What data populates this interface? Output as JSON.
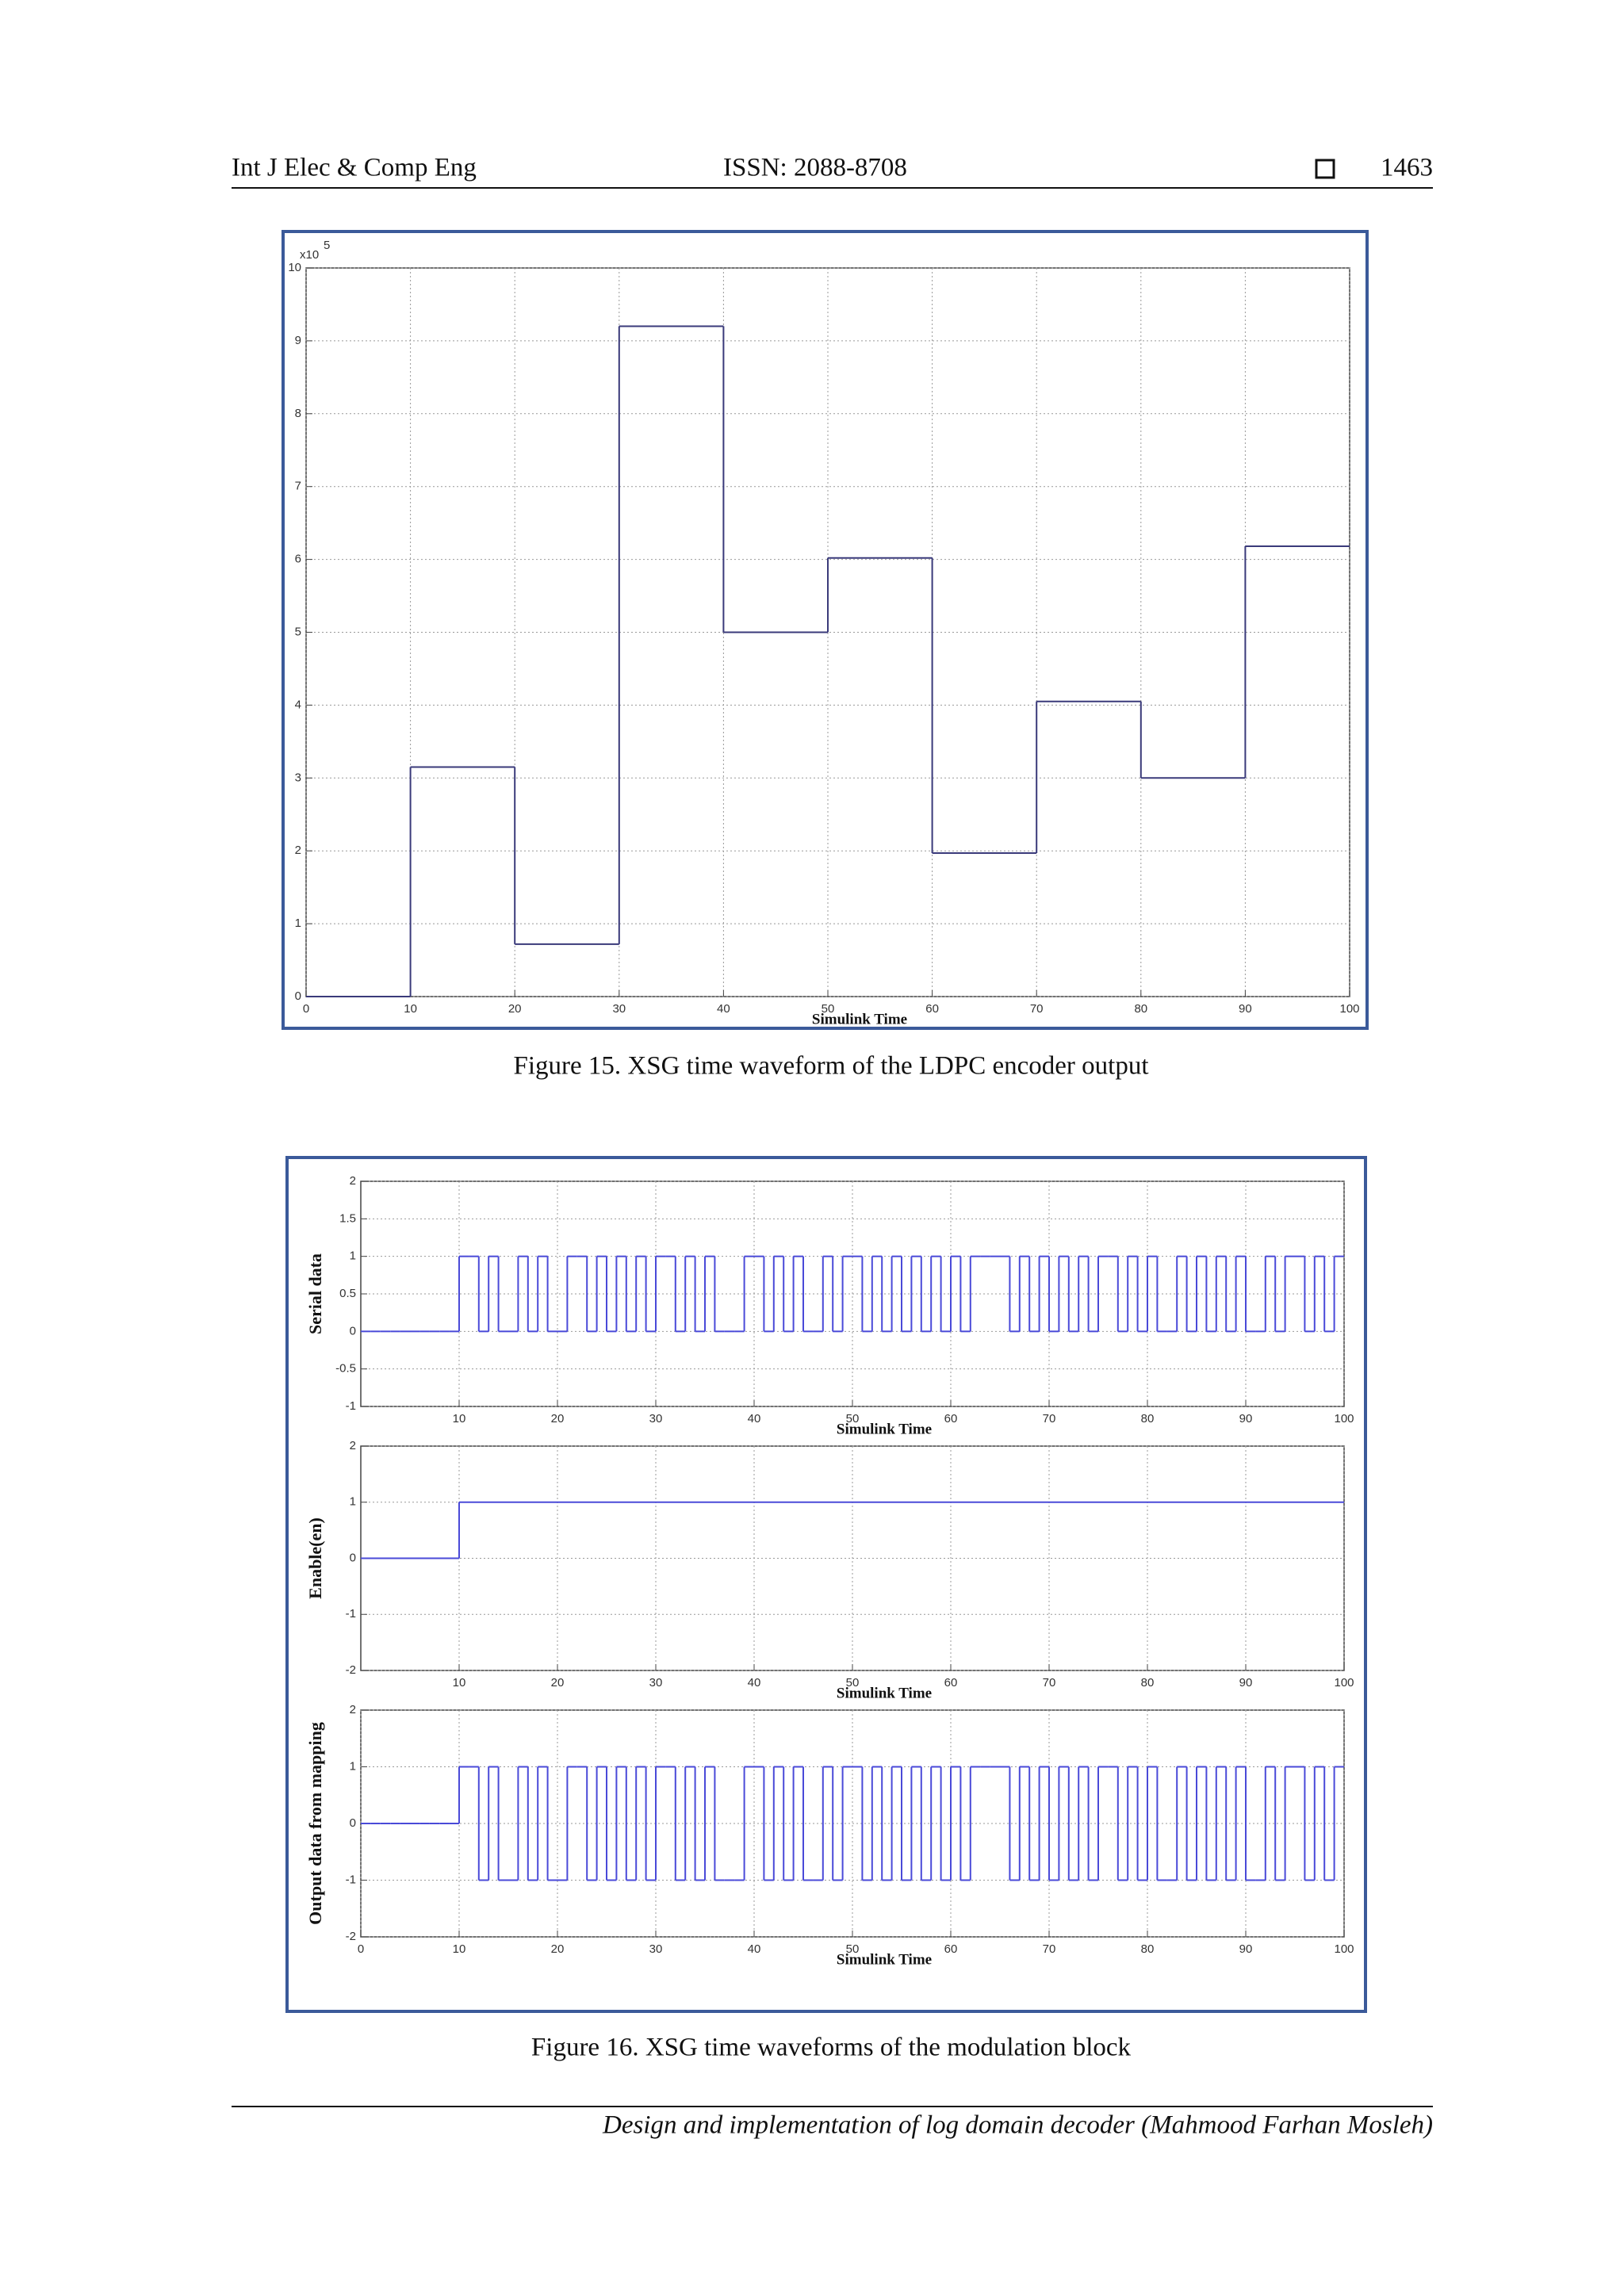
{
  "header": {
    "journal": "Int J Elec & Comp Eng",
    "issn": "ISSN: 2088-8708",
    "page": "1463"
  },
  "captions": [
    "Figure 15. XSG time waveform of the LDPC encoder output",
    "Figure 16. XSG time waveforms of the modulation block"
  ],
  "footer": "Design and implementation of log domain decoder (Mahmood Farhan Mosleh)",
  "chart_data": [
    {
      "type": "step",
      "xlabel": "Simulink Time",
      "y_scale": {
        "base": "x10",
        "exponent": "5"
      },
      "color": "#3a3a7a",
      "grid": true,
      "x": [
        0,
        10,
        20,
        30,
        40,
        50,
        60,
        70,
        80,
        90
      ],
      "values": [
        0,
        3.15,
        0.72,
        9.2,
        5.0,
        6.02,
        1.97,
        4.05,
        3.0,
        6.18
      ],
      "xlim": [
        0,
        100
      ],
      "ylim": [
        0,
        10
      ],
      "xticks": [
        0,
        10,
        20,
        30,
        40,
        50,
        60,
        70,
        80,
        90,
        100
      ],
      "yticks": [
        0,
        1,
        2,
        3,
        4,
        5,
        6,
        7,
        8,
        9,
        10
      ]
    },
    {
      "type": "step",
      "ylabel": "Serial data",
      "xlabel": "Simulink Time",
      "color": "#4a4ad8",
      "grid": true,
      "x": [
        0,
        1,
        2,
        3,
        4,
        5,
        6,
        7,
        8,
        9,
        10,
        11,
        12,
        13,
        14,
        15,
        16,
        17,
        18,
        19,
        20,
        21,
        22,
        23,
        24,
        25,
        26,
        27,
        28,
        29,
        30,
        31,
        32,
        33,
        34,
        35,
        36,
        37,
        38,
        39,
        40,
        41,
        42,
        43,
        44,
        45,
        46,
        47,
        48,
        49,
        50,
        51,
        52,
        53,
        54,
        55,
        56,
        57,
        58,
        59,
        60,
        61,
        62,
        63,
        64,
        65,
        66,
        67,
        68,
        69,
        70,
        71,
        72,
        73,
        74,
        75,
        76,
        77,
        78,
        79,
        80,
        81,
        82,
        83,
        84,
        85,
        86,
        87,
        88,
        89,
        90,
        91,
        92,
        93,
        94,
        95,
        96,
        97,
        98,
        99
      ],
      "values": [
        0,
        0,
        0,
        0,
        0,
        0,
        0,
        0,
        0,
        0,
        1,
        1,
        0,
        1,
        0,
        0,
        1,
        0,
        1,
        0,
        0,
        1,
        1,
        0,
        1,
        0,
        1,
        0,
        1,
        0,
        1,
        1,
        0,
        1,
        0,
        1,
        0,
        0,
        0,
        1,
        1,
        0,
        1,
        0,
        1,
        0,
        0,
        1,
        0,
        1,
        1,
        0,
        1,
        0,
        1,
        0,
        1,
        0,
        1,
        0,
        1,
        0,
        1,
        1,
        1,
        1,
        0,
        1,
        0,
        1,
        0,
        1,
        0,
        1,
        0,
        1,
        1,
        0,
        1,
        0,
        1,
        0,
        0,
        1,
        0,
        1,
        0,
        1,
        0,
        1,
        0,
        0,
        1,
        0,
        1,
        1,
        0,
        1,
        0,
        1
      ],
      "xlim": [
        0,
        100
      ],
      "ylim": [
        -1,
        2
      ],
      "xticks": [
        10,
        20,
        30,
        40,
        50,
        60,
        70,
        80,
        90,
        100
      ],
      "yticks": [
        -1,
        -0.5,
        0,
        0.5,
        1,
        1.5,
        2
      ]
    },
    {
      "type": "step",
      "ylabel": "Enable(en)",
      "xlabel": "Simulink Time",
      "color": "#4a4ad8",
      "grid": true,
      "x": [
        0,
        10
      ],
      "values": [
        0,
        1
      ],
      "xlim": [
        0,
        100
      ],
      "ylim": [
        -2,
        2
      ],
      "xticks": [
        10,
        20,
        30,
        40,
        50,
        60,
        70,
        80,
        90,
        100
      ],
      "yticks": [
        -2,
        -1,
        0,
        1,
        2
      ]
    },
    {
      "type": "step",
      "ylabel": "Output data from mapping",
      "xlabel": "Simulink Time",
      "color": "#4a4ad8",
      "grid": true,
      "x": [
        0,
        1,
        2,
        3,
        4,
        5,
        6,
        7,
        8,
        9,
        10,
        11,
        12,
        13,
        14,
        15,
        16,
        17,
        18,
        19,
        20,
        21,
        22,
        23,
        24,
        25,
        26,
        27,
        28,
        29,
        30,
        31,
        32,
        33,
        34,
        35,
        36,
        37,
        38,
        39,
        40,
        41,
        42,
        43,
        44,
        45,
        46,
        47,
        48,
        49,
        50,
        51,
        52,
        53,
        54,
        55,
        56,
        57,
        58,
        59,
        60,
        61,
        62,
        63,
        64,
        65,
        66,
        67,
        68,
        69,
        70,
        71,
        72,
        73,
        74,
        75,
        76,
        77,
        78,
        79,
        80,
        81,
        82,
        83,
        84,
        85,
        86,
        87,
        88,
        89,
        90,
        91,
        92,
        93,
        94,
        95,
        96,
        97,
        98,
        99
      ],
      "values": [
        0,
        0,
        0,
        0,
        0,
        0,
        0,
        0,
        0,
        0,
        1,
        1,
        -1,
        1,
        -1,
        -1,
        1,
        -1,
        1,
        -1,
        -1,
        1,
        1,
        -1,
        1,
        -1,
        1,
        -1,
        1,
        -1,
        1,
        1,
        -1,
        1,
        -1,
        1,
        -1,
        -1,
        -1,
        1,
        1,
        -1,
        1,
        -1,
        1,
        -1,
        -1,
        1,
        -1,
        1,
        1,
        -1,
        1,
        -1,
        1,
        -1,
        1,
        -1,
        1,
        -1,
        1,
        -1,
        1,
        1,
        1,
        1,
        -1,
        1,
        -1,
        1,
        -1,
        1,
        -1,
        1,
        -1,
        1,
        1,
        -1,
        1,
        -1,
        1,
        -1,
        -1,
        1,
        -1,
        1,
        -1,
        1,
        -1,
        1,
        -1,
        -1,
        1,
        -1,
        1,
        1,
        -1,
        1,
        -1,
        1
      ],
      "xlim": [
        0,
        100
      ],
      "ylim": [
        -2,
        2
      ],
      "xticks": [
        0,
        10,
        20,
        30,
        40,
        50,
        60,
        70,
        80,
        90,
        100
      ],
      "yticks": [
        -2,
        -1,
        0,
        1,
        2
      ]
    }
  ]
}
